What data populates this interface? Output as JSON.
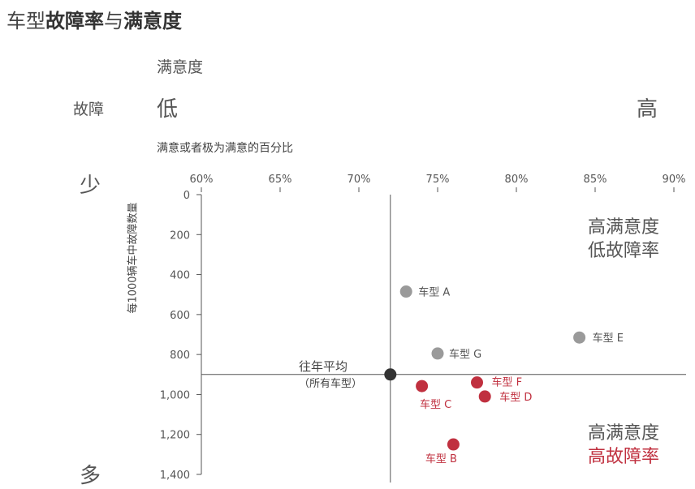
{
  "title": {
    "part1": "车型",
    "part2": "故障率",
    "part3": "与",
    "part4": "满意度"
  },
  "legend": {
    "satisfaction_header": "满意度",
    "failure_header": "故障",
    "low_label": "低",
    "high_label": "高",
    "few_label": "少",
    "many_label": "多"
  },
  "quadrants": {
    "top_right_line1": "高满意度",
    "top_right_line2": "低故障率",
    "bottom_right_line1": "高满意度",
    "bottom_right_line2": "高故障率"
  },
  "colors": {
    "gray_point": "#9a9a9a",
    "red_point": "#c0303f",
    "avg_point": "#333333",
    "axis": "#555555"
  },
  "chart_data": {
    "type": "scatter",
    "xlabel": "满意或者极为满意的百分比",
    "ylabel": "每1000辆车中故障数量",
    "xlim": [
      60,
      90
    ],
    "ylim": [
      0,
      1400
    ],
    "y_inverted": true,
    "x_ticks": [
      60,
      65,
      70,
      75,
      80,
      85,
      90
    ],
    "x_tick_labels": [
      "60%",
      "65%",
      "70%",
      "75%",
      "80%",
      "85%",
      "90%"
    ],
    "y_ticks": [
      0,
      200,
      400,
      600,
      800,
      1000,
      1200,
      1400
    ],
    "y_tick_labels": [
      "0",
      "200",
      "400",
      "600",
      "800",
      "1,000",
      "1,200",
      "1,400"
    ],
    "reference_lines": {
      "x": 72,
      "y": 900
    },
    "average": {
      "label_line1": "往年平均",
      "label_line2": "（所有车型）",
      "x": 72,
      "y": 900
    },
    "points": [
      {
        "label": "车型 A",
        "x": 73,
        "y": 485,
        "group": "gray"
      },
      {
        "label": "车型 E",
        "x": 84,
        "y": 715,
        "group": "gray"
      },
      {
        "label": "车型 G",
        "x": 75,
        "y": 795,
        "group": "gray"
      },
      {
        "label": "车型 F",
        "x": 77.5,
        "y": 940,
        "group": "red"
      },
      {
        "label": "车型 C",
        "x": 74,
        "y": 958,
        "group": "red"
      },
      {
        "label": "车型 D",
        "x": 78,
        "y": 1010,
        "group": "red"
      },
      {
        "label": "车型 B",
        "x": 76,
        "y": 1250,
        "group": "red"
      }
    ]
  }
}
